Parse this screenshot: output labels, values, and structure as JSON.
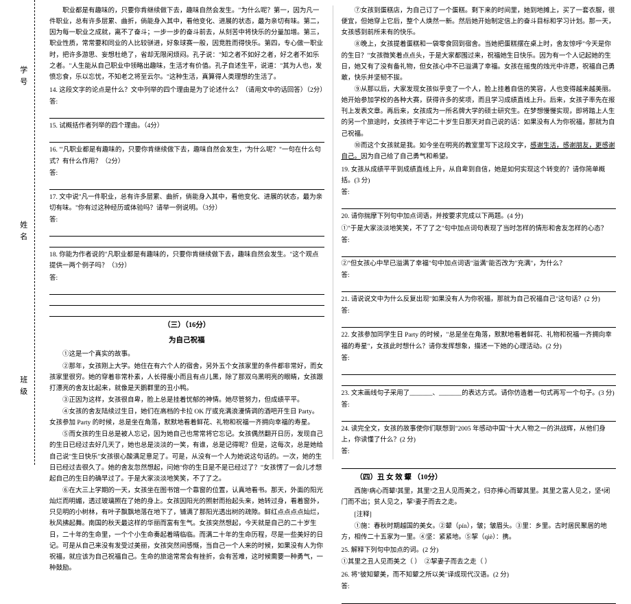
{
  "side": {
    "label1": "学号",
    "label2": "姓名",
    "label3": "班级"
  },
  "left": {
    "p1": "职业都是有趣味的，只要你肯继续做下去，趣味自然会发生。\"为什么呢？第一，因为凡一件职业，总有许多层累、曲折，倘能身入其中，看他变化、进展的状态，最为亲切有味。第二，因为每一职业之成就，离不了奋斗；一步一步的奋斗前去，从刻苦中将快乐的分量加增。第三，职业性质，常常要和同业的人比较骈进，好象球赛一般，因竞胜而得快乐。第四，专心做一职业时，把许多游思、妄想杜绝了，省却无限闲烦闷。孔子说：\"知之者不如好之者，好之者不如乐之者。\"人生能从自己职业中领略出趣味，生活才有价值。孔子自述生平，说道：\"其为人也，发愤忘食，乐以忘忧，不知老之将至云尔。\"这种生活，真算得人类理想的生活了。",
    "q14": "14. 这段文字的论点是什么？文中列举的四个理由是为了论述什么？（请用文中的话回答）（2分）",
    "q15": "15. 试概括作者列举的四个理由。（4分）",
    "q16": "16. \"'凡职业都是有趣味的，只要你肯继续做下去，趣味自然会发生，'为什么呢？\"一句在什么句式？有什么作用？（2分）",
    "q17": "17. 文中说\"凡一件职业，总有许多层累、曲折，倘能身入其中，看他变化、进展的状态，最为亲切有味。\"你有过这种经历或体验吗？请举一例说明。（3分）",
    "q18": "18. 你能为作者说的\"凡职业都是有趣味的，只要你肯继续做下去，趣味自然会发生。\"这个观点提供一两个例子吗？（3分）",
    "section3_title": "（三）（16分）",
    "story_title": "为自己祝福",
    "s1": "①这是一个真实的故事。",
    "s2": "②那年，女孩刚上大学。她住在有六个人的宿舍，另外五个女孩家里的条件都非常好，而女孩家里很穷。她的穿着非常朴素，人长得瘦小而且有点儿黑，除了那双乌黑明亮的眼睛，女孩跟打漂亮的舍友比起来，就像是天鹅群里的丑小鸭。",
    "s3": "③正因为这样，女孩很自卑，脸上总是挂着忧郁的神情。她尽管努力，但成绩平平。",
    "s4": "④女孩的舍友陆续过生日，她们在高档的卡拉 OK 厅或充满浪漫情调的酒吧开生日 Party。女孩参加 Party 的时候，总是坐在角落，默默地看着鲜花、礼物和祝福一齐拥向幸福的寿星。",
    "s5": "⑤而女孩的生日总是被人忘记，因为她自己也常常将它忘记。女孩偶然翻开日历，发现自己的生日已经过去好几天了，她也总是淡淡的一笑，有谁，总是记得呢？但是，这每次，总是她给自己说\"生日快乐\"女孩很心酸满足意足了。可是，从没有一个人为她说这句话的。一次，她的生日已经过去很久了。她的舍友忽然想起，问她\"你的生日是不是已经过了？\"女孩愣了一会儿才想起自己的生日的确早过了。于是大家淡淡地笑笑，不了了之。",
    "s6": "⑥在大三上学期的一天，女孩坐在图书馆一个靠窗的位置，认真地看书。那天，外面的阳光灿烂而明媚，透过玻璃照在了她的身上。女孩因阳光的照射而抬起头来，她转过身，看着窗外，只见明的小树林，有叶子飘飘地落在地下了，铺满了那阳光透出树的疏隙。鲜红点点点点灿烂，秋风拂起舞。南国的秋天最这样的华丽而富有生气。女孩突然想起，今天就是自己的二十岁生日，二十年的生命里，一个个小生命奏起着晴临临。而满二十年的生命历程，尽是一些美好的日记。可是从自己来没有发受过美丽，女孩突然间感慨，当自己一个人来的时候，如果没有人为你祝福，就应该为自己祝福自己。生命的旅途常常会有挫折，会有苦难，这时候需要一种勇气，一种鼓励。"
  },
  "right": {
    "s7": "⑦女孩到蛋糕店，为自己订了一个蛋糕。剩下来的时间里，她到地摊上，买了一套衣服，很便宜，但她穿上它后，整个人焕然一新。然后她开始制定信上的奋斗目标和学习计划。那一天，女孩感到前所未有的快乐。",
    "s8": "⑧晚上，女孩提着蛋糕和一袋零食回到宿舍。当她把蛋糕摆在桌上时，舍友惊呼\"今天是你的生日？\"女孩微笑着点点头，于是大家都围过来，祝福她生日快乐。因为有一个人记起她的生日，她又有了没有备礼物，但女孩心中不已溢满了幸福。女孩在摇曳的烛光中许愿，祝福自己勇敢，快乐并坚韧不拔。",
    "s9": "⑨从那以后，大家发现女孩似乎变了一个人，脸上挂着自信的笑容，人也变得越来越美丽。她开始参加学校的各种大赛，获得许多的奖项，而且学习成绩直线上升。后来，女孩子率先在报刊上发表文章。再后来，女孩成为一所名牌大学的硕士研究生。在梦想慢慢实现，即将踏上人生的另一个旅途时，女孩终于牢记二十岁生日那天对自己说的话：如果没有人为你祝福，那就为自己祝福。",
    "s10": "⑩而这个女孩就是我。如今坐在明亮的教室里写下这段文字，感谢生活，感谢朋友，更感谢自己。因为自己给了自己勇气和希望。",
    "q19": "19. 女孩从成绩平平到成绩直线上升，从自卑到自信，她是如何实现这个转变的？请你简单概括。(3 分)",
    "q20": "20. 请你揣摩下列句中加点词语，并按要求完成以下两题。(4 分)",
    "q20a": "①\"于是大家淡淡地笑笑，不了了之\"句中加点词句表现了当时怎样的情形和舍友怎样的心态？",
    "q20b": "②\"但女孩心中早已溢满了幸福\"句中加点词语\"溢满\"能否改为\"充满\"，为什么？",
    "q21": "21. 请说说文中为什么反复出现\"如果没有人为你祝福，那就为自己祝福自己\"这句话？(2 分)",
    "q22": "22. 女孩参加同学生日 Party 的时候，\"总是坐在角落，默默地看着鲜花、礼物和祝福一齐拥向幸福的寿星\"，女孩此时想什么？请你发挥想象，描述一下她的心理活动。(2 分)",
    "q23": "23. 文末画线句子采用了_______、_______的表达方式。请你仿造着一句式再写一个句子。(3 分)",
    "q24": "24. 读完全文，女孩的故事使你们联想到\"2005 年感动中国\"十大人物之一的洪战辉，从他们身上，你读懂了什么？(2 分)",
    "section4_title": "（四）丑 女 效 颦  （10分）",
    "c1": "西施¹病心而颦²其里，其里³之丑人见而美之，归亦捧心而颦其里。其里之富人见之，坚⁴闭门而不出；贫人见之，挈⁵妻子而去之走。",
    "notes_label": "[注释]",
    "notes": "①施：春秋时期越国的美女。②颦（pín），皱；皱眉头。③里：乡里。古时居民聚居的地方，相传二十五家为一里。④坚：紧紧地。⑤挈（qiè）：携。",
    "q25": "25. 解释下列句中加点的词。(2 分)",
    "q25a": "①其里之丑人见而美之（    ）",
    "q25b": "②挈妻子而去之走（    ）",
    "q26": "26. 将\"彼知颦美，而不知颦之所以美\"译成现代汉语。(2 分)"
  }
}
